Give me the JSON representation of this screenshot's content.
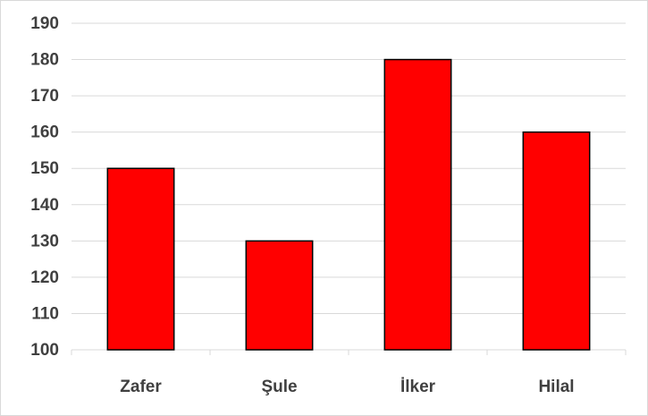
{
  "chart_data": {
    "type": "bar",
    "categories": [
      "Zafer",
      "Şule",
      "İlker",
      "Hilal"
    ],
    "values": [
      150,
      130,
      180,
      160
    ],
    "color": "#ff0000",
    "ylim": [
      100,
      190
    ],
    "yticks": [
      100,
      110,
      120,
      130,
      140,
      150,
      160,
      170,
      180,
      190
    ],
    "grid": true
  }
}
